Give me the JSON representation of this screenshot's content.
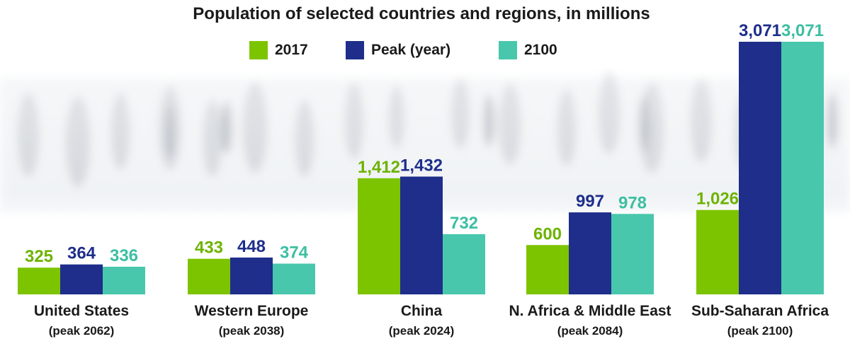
{
  "chart_data": {
    "type": "bar",
    "title": "Population of selected countries and regions, in millions",
    "categories": [
      {
        "name": "United States",
        "sub": "(peak 2062)"
      },
      {
        "name": "Western Europe",
        "sub": "(peak 2038)"
      },
      {
        "name": "China",
        "sub": "(peak 2024)"
      },
      {
        "name": "N. Africa & Middle East",
        "sub": "(peak 2084)"
      },
      {
        "name": "Sub-Saharan Africa",
        "sub": "(peak 2100)"
      }
    ],
    "series": [
      {
        "name": "2017",
        "color": "#7dc400",
        "values": [
          325,
          433,
          1412,
          600,
          1026
        ],
        "labels": [
          "325",
          "433",
          "1,412",
          "600",
          "1,026"
        ]
      },
      {
        "name": "Peak (year)",
        "color": "#1e2e8a",
        "values": [
          364,
          448,
          1432,
          997,
          3071
        ],
        "labels": [
          "364",
          "448",
          "1,432",
          "997",
          "3,071"
        ]
      },
      {
        "name": "2100",
        "color": "#48c7ac",
        "values": [
          336,
          374,
          732,
          978,
          3071
        ],
        "labels": [
          "336",
          "374",
          "732",
          "978",
          "3,071"
        ]
      }
    ],
    "ylim": [
      0,
      3071
    ],
    "legend_position": "top",
    "grid": false
  }
}
